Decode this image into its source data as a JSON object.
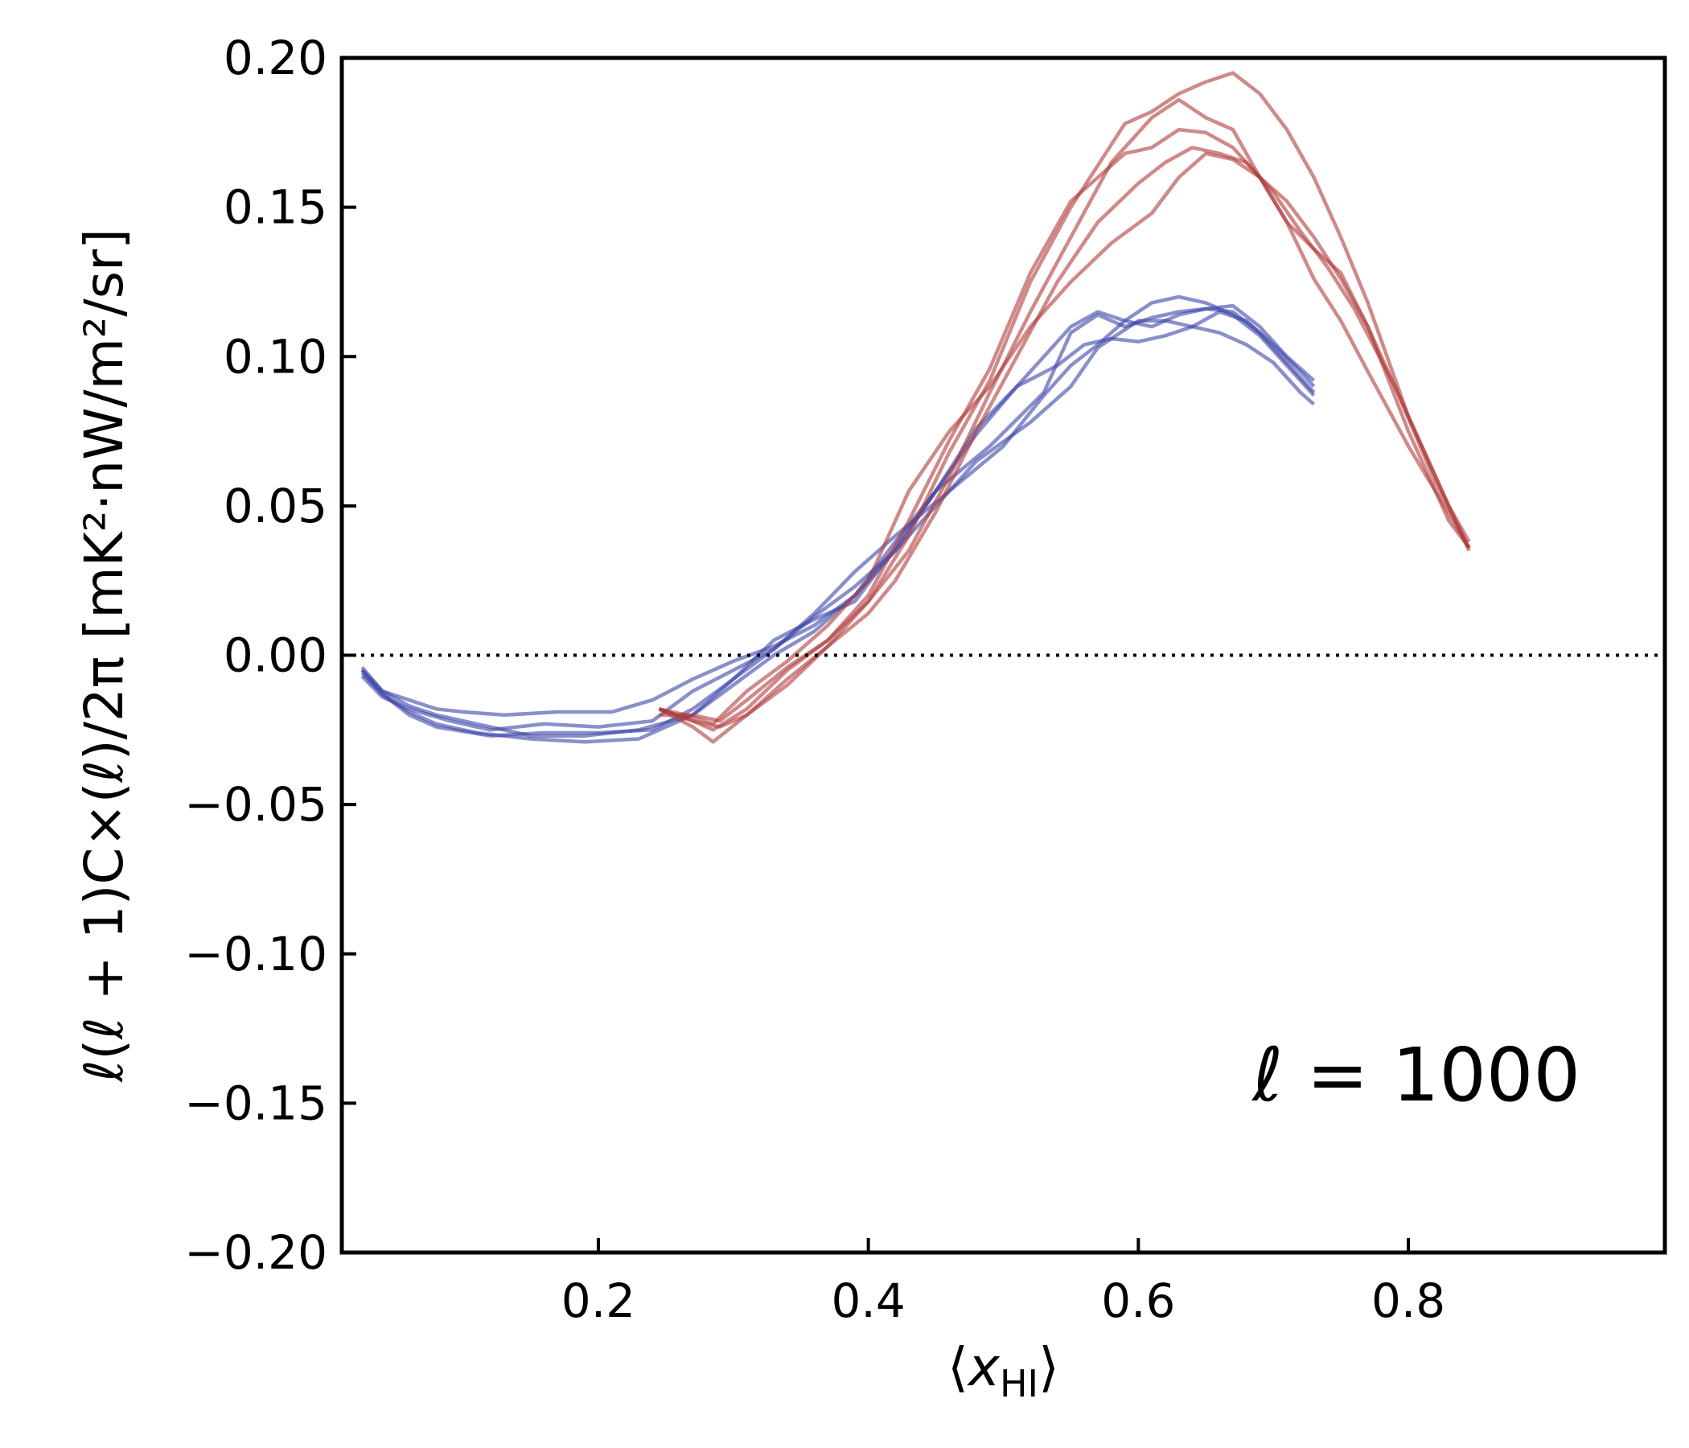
{
  "chart_data": {
    "type": "line",
    "title": "",
    "xlabel": "⟨x_HI⟩",
    "xlabel_parts": {
      "open": "⟨",
      "var": "x",
      "sub": "HI",
      "close": "⟩"
    },
    "ylabel": "ℓ(ℓ + 1)C×(ℓ)/2π [mK²·nW/m²/sr]",
    "xlim": [
      0.01,
      0.99
    ],
    "ylim": [
      -0.2,
      0.2
    ],
    "x_ticks": [
      0.2,
      0.4,
      0.6,
      0.8
    ],
    "x_tick_labels": [
      "0.2",
      "0.4",
      "0.6",
      "0.8"
    ],
    "y_ticks": [
      -0.2,
      -0.15,
      -0.1,
      -0.05,
      0.0,
      0.05,
      0.1,
      0.15,
      0.2
    ],
    "y_tick_labels": [
      "−0.20",
      "−0.15",
      "−0.10",
      "−0.05",
      "0.00",
      "0.05",
      "0.10",
      "0.15",
      "0.20"
    ],
    "reference_line": {
      "y": 0.0,
      "style": "dotted",
      "color": "#000000"
    },
    "annotation": "ℓ = 1000",
    "annotation_position": "lower-right",
    "grid": false,
    "legend": "none",
    "colors": {
      "blue": "#3a45a8",
      "red": "#b03a3a"
    },
    "series": [
      {
        "color_key": "blue",
        "points": [
          [
            0.025,
            -0.005
          ],
          [
            0.04,
            -0.012
          ],
          [
            0.06,
            -0.015
          ],
          [
            0.08,
            -0.018
          ],
          [
            0.1,
            -0.019
          ],
          [
            0.13,
            -0.02
          ],
          [
            0.17,
            -0.019
          ],
          [
            0.21,
            -0.019
          ],
          [
            0.24,
            -0.015
          ],
          [
            0.27,
            -0.008
          ],
          [
            0.3,
            -0.002
          ],
          [
            0.33,
            0.003
          ],
          [
            0.36,
            0.01
          ],
          [
            0.39,
            0.02
          ],
          [
            0.42,
            0.038
          ],
          [
            0.45,
            0.055
          ],
          [
            0.49,
            0.07
          ],
          [
            0.53,
            0.088
          ],
          [
            0.55,
            0.108
          ],
          [
            0.57,
            0.114
          ],
          [
            0.59,
            0.11
          ],
          [
            0.61,
            0.113
          ],
          [
            0.63,
            0.115
          ],
          [
            0.65,
            0.116
          ],
          [
            0.67,
            0.115
          ],
          [
            0.69,
            0.108
          ],
          [
            0.71,
            0.098
          ],
          [
            0.73,
            0.088
          ]
        ]
      },
      {
        "color_key": "blue",
        "points": [
          [
            0.025,
            -0.007
          ],
          [
            0.04,
            -0.014
          ],
          [
            0.06,
            -0.018
          ],
          [
            0.09,
            -0.022
          ],
          [
            0.12,
            -0.025
          ],
          [
            0.16,
            -0.023
          ],
          [
            0.2,
            -0.024
          ],
          [
            0.24,
            -0.022
          ],
          [
            0.27,
            -0.012
          ],
          [
            0.3,
            -0.005
          ],
          [
            0.33,
            0.002
          ],
          [
            0.36,
            0.014
          ],
          [
            0.39,
            0.028
          ],
          [
            0.42,
            0.04
          ],
          [
            0.46,
            0.055
          ],
          [
            0.5,
            0.07
          ],
          [
            0.53,
            0.087
          ],
          [
            0.55,
            0.097
          ],
          [
            0.57,
            0.104
          ],
          [
            0.59,
            0.112
          ],
          [
            0.61,
            0.118
          ],
          [
            0.63,
            0.12
          ],
          [
            0.65,
            0.118
          ],
          [
            0.67,
            0.114
          ],
          [
            0.69,
            0.107
          ],
          [
            0.71,
            0.097
          ],
          [
            0.73,
            0.087
          ]
        ]
      },
      {
        "color_key": "blue",
        "points": [
          [
            0.025,
            -0.004
          ],
          [
            0.04,
            -0.012
          ],
          [
            0.06,
            -0.017
          ],
          [
            0.08,
            -0.02
          ],
          [
            0.11,
            -0.023
          ],
          [
            0.15,
            -0.027
          ],
          [
            0.19,
            -0.027
          ],
          [
            0.23,
            -0.025
          ],
          [
            0.27,
            -0.02
          ],
          [
            0.3,
            -0.008
          ],
          [
            0.33,
            0.005
          ],
          [
            0.36,
            0.012
          ],
          [
            0.39,
            0.018
          ],
          [
            0.42,
            0.036
          ],
          [
            0.45,
            0.055
          ],
          [
            0.48,
            0.074
          ],
          [
            0.51,
            0.09
          ],
          [
            0.54,
            0.097
          ],
          [
            0.56,
            0.104
          ],
          [
            0.58,
            0.106
          ],
          [
            0.6,
            0.105
          ],
          [
            0.62,
            0.107
          ],
          [
            0.64,
            0.11
          ],
          [
            0.66,
            0.115
          ],
          [
            0.68,
            0.112
          ],
          [
            0.7,
            0.104
          ],
          [
            0.72,
            0.095
          ],
          [
            0.73,
            0.09
          ]
        ]
      },
      {
        "color_key": "blue",
        "points": [
          [
            0.025,
            -0.006
          ],
          [
            0.04,
            -0.013
          ],
          [
            0.06,
            -0.019
          ],
          [
            0.08,
            -0.023
          ],
          [
            0.11,
            -0.026
          ],
          [
            0.15,
            -0.028
          ],
          [
            0.19,
            -0.029
          ],
          [
            0.23,
            -0.028
          ],
          [
            0.27,
            -0.02
          ],
          [
            0.3,
            -0.01
          ],
          [
            0.33,
            0.0
          ],
          [
            0.36,
            0.008
          ],
          [
            0.39,
            0.02
          ],
          [
            0.42,
            0.035
          ],
          [
            0.45,
            0.05
          ],
          [
            0.48,
            0.065
          ],
          [
            0.52,
            0.078
          ],
          [
            0.55,
            0.09
          ],
          [
            0.57,
            0.103
          ],
          [
            0.6,
            0.112
          ],
          [
            0.62,
            0.112
          ],
          [
            0.64,
            0.11
          ],
          [
            0.66,
            0.108
          ],
          [
            0.68,
            0.104
          ],
          [
            0.7,
            0.098
          ],
          [
            0.72,
            0.088
          ],
          [
            0.73,
            0.084
          ]
        ]
      },
      {
        "color_key": "blue",
        "points": [
          [
            0.025,
            -0.005
          ],
          [
            0.04,
            -0.013
          ],
          [
            0.06,
            -0.02
          ],
          [
            0.08,
            -0.024
          ],
          [
            0.12,
            -0.027
          ],
          [
            0.16,
            -0.026
          ],
          [
            0.2,
            -0.026
          ],
          [
            0.24,
            -0.025
          ],
          [
            0.27,
            -0.018
          ],
          [
            0.3,
            -0.008
          ],
          [
            0.33,
            0.002
          ],
          [
            0.36,
            0.013
          ],
          [
            0.39,
            0.023
          ],
          [
            0.42,
            0.035
          ],
          [
            0.45,
            0.055
          ],
          [
            0.48,
            0.076
          ],
          [
            0.51,
            0.09
          ],
          [
            0.53,
            0.1
          ],
          [
            0.55,
            0.11
          ],
          [
            0.57,
            0.115
          ],
          [
            0.59,
            0.112
          ],
          [
            0.61,
            0.11
          ],
          [
            0.63,
            0.114
          ],
          [
            0.65,
            0.116
          ],
          [
            0.67,
            0.117
          ],
          [
            0.69,
            0.11
          ],
          [
            0.71,
            0.1
          ],
          [
            0.73,
            0.092
          ]
        ]
      },
      {
        "color_key": "red",
        "points": [
          [
            0.245,
            -0.018
          ],
          [
            0.265,
            -0.021
          ],
          [
            0.285,
            -0.025
          ],
          [
            0.31,
            -0.018
          ],
          [
            0.34,
            -0.005
          ],
          [
            0.37,
            0.005
          ],
          [
            0.4,
            0.018
          ],
          [
            0.43,
            0.035
          ],
          [
            0.46,
            0.06
          ],
          [
            0.49,
            0.088
          ],
          [
            0.52,
            0.115
          ],
          [
            0.55,
            0.14
          ],
          [
            0.58,
            0.165
          ],
          [
            0.61,
            0.18
          ],
          [
            0.63,
            0.186
          ],
          [
            0.65,
            0.18
          ],
          [
            0.67,
            0.176
          ],
          [
            0.69,
            0.16
          ],
          [
            0.71,
            0.145
          ],
          [
            0.73,
            0.126
          ],
          [
            0.75,
            0.112
          ],
          [
            0.77,
            0.095
          ],
          [
            0.8,
            0.07
          ],
          [
            0.82,
            0.055
          ],
          [
            0.845,
            0.036
          ]
        ]
      },
      {
        "color_key": "red",
        "points": [
          [
            0.245,
            -0.018
          ],
          [
            0.27,
            -0.024
          ],
          [
            0.285,
            -0.029
          ],
          [
            0.31,
            -0.02
          ],
          [
            0.34,
            -0.01
          ],
          [
            0.37,
            0.003
          ],
          [
            0.4,
            0.018
          ],
          [
            0.43,
            0.04
          ],
          [
            0.46,
            0.068
          ],
          [
            0.49,
            0.092
          ],
          [
            0.52,
            0.125
          ],
          [
            0.55,
            0.15
          ],
          [
            0.57,
            0.164
          ],
          [
            0.59,
            0.178
          ],
          [
            0.61,
            0.182
          ],
          [
            0.63,
            0.188
          ],
          [
            0.65,
            0.192
          ],
          [
            0.67,
            0.195
          ],
          [
            0.69,
            0.188
          ],
          [
            0.71,
            0.176
          ],
          [
            0.73,
            0.16
          ],
          [
            0.75,
            0.14
          ],
          [
            0.77,
            0.118
          ],
          [
            0.8,
            0.08
          ],
          [
            0.83,
            0.05
          ],
          [
            0.845,
            0.038
          ]
        ]
      },
      {
        "color_key": "red",
        "points": [
          [
            0.245,
            -0.02
          ],
          [
            0.27,
            -0.02
          ],
          [
            0.29,
            -0.022
          ],
          [
            0.31,
            -0.015
          ],
          [
            0.34,
            -0.004
          ],
          [
            0.37,
            0.005
          ],
          [
            0.4,
            0.02
          ],
          [
            0.43,
            0.045
          ],
          [
            0.46,
            0.072
          ],
          [
            0.49,
            0.096
          ],
          [
            0.52,
            0.128
          ],
          [
            0.55,
            0.152
          ],
          [
            0.57,
            0.16
          ],
          [
            0.59,
            0.168
          ],
          [
            0.61,
            0.17
          ],
          [
            0.63,
            0.176
          ],
          [
            0.65,
            0.175
          ],
          [
            0.67,
            0.17
          ],
          [
            0.69,
            0.16
          ],
          [
            0.71,
            0.145
          ],
          [
            0.73,
            0.136
          ],
          [
            0.75,
            0.128
          ],
          [
            0.77,
            0.11
          ],
          [
            0.8,
            0.075
          ],
          [
            0.83,
            0.045
          ],
          [
            0.845,
            0.036
          ]
        ]
      },
      {
        "color_key": "red",
        "points": [
          [
            0.245,
            -0.018
          ],
          [
            0.27,
            -0.022
          ],
          [
            0.29,
            -0.024
          ],
          [
            0.31,
            -0.02
          ],
          [
            0.34,
            -0.008
          ],
          [
            0.37,
            0.003
          ],
          [
            0.4,
            0.014
          ],
          [
            0.42,
            0.025
          ],
          [
            0.45,
            0.048
          ],
          [
            0.48,
            0.075
          ],
          [
            0.51,
            0.1
          ],
          [
            0.54,
            0.125
          ],
          [
            0.57,
            0.145
          ],
          [
            0.6,
            0.158
          ],
          [
            0.62,
            0.165
          ],
          [
            0.64,
            0.17
          ],
          [
            0.66,
            0.168
          ],
          [
            0.68,
            0.165
          ],
          [
            0.7,
            0.155
          ],
          [
            0.72,
            0.142
          ],
          [
            0.74,
            0.13
          ],
          [
            0.76,
            0.116
          ],
          [
            0.79,
            0.09
          ],
          [
            0.82,
            0.058
          ],
          [
            0.845,
            0.036
          ]
        ]
      },
      {
        "color_key": "red",
        "points": [
          [
            0.245,
            -0.018
          ],
          [
            0.265,
            -0.02
          ],
          [
            0.285,
            -0.023
          ],
          [
            0.31,
            -0.012
          ],
          [
            0.34,
            -0.002
          ],
          [
            0.37,
            0.01
          ],
          [
            0.4,
            0.025
          ],
          [
            0.43,
            0.055
          ],
          [
            0.46,
            0.075
          ],
          [
            0.49,
            0.09
          ],
          [
            0.52,
            0.11
          ],
          [
            0.55,
            0.125
          ],
          [
            0.58,
            0.138
          ],
          [
            0.61,
            0.148
          ],
          [
            0.63,
            0.16
          ],
          [
            0.65,
            0.168
          ],
          [
            0.67,
            0.166
          ],
          [
            0.69,
            0.16
          ],
          [
            0.71,
            0.152
          ],
          [
            0.73,
            0.14
          ],
          [
            0.75,
            0.126
          ],
          [
            0.77,
            0.11
          ],
          [
            0.8,
            0.08
          ],
          [
            0.82,
            0.06
          ],
          [
            0.845,
            0.035
          ]
        ]
      }
    ]
  }
}
